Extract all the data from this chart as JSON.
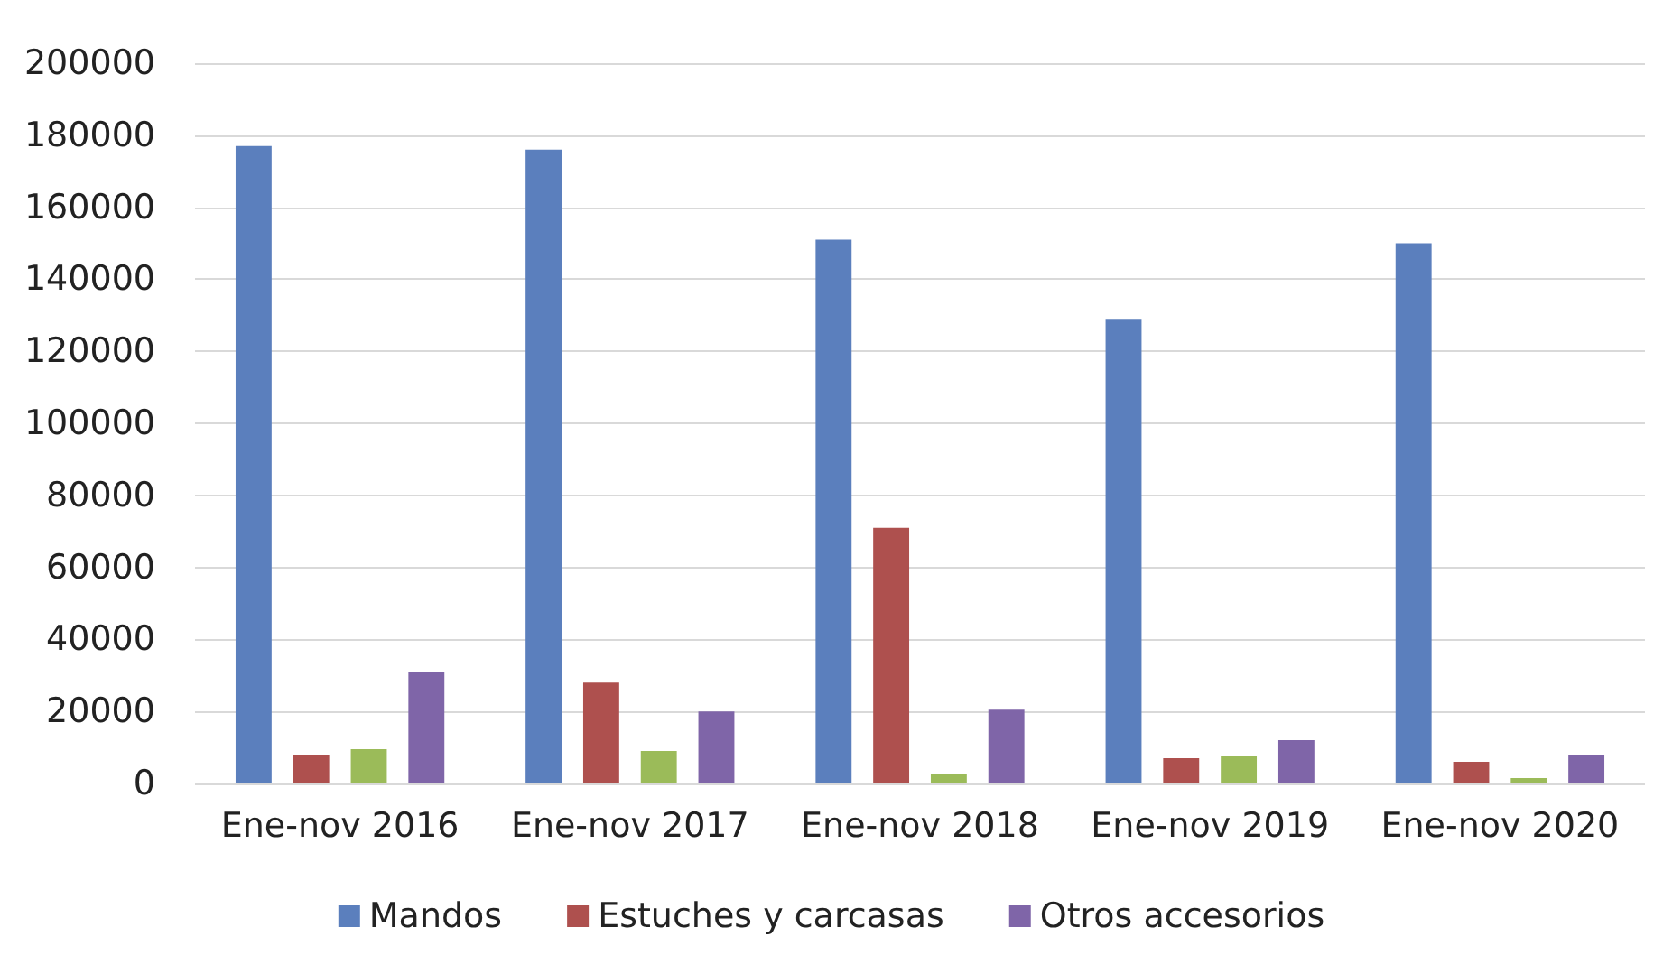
{
  "chart_data": {
    "type": "bar",
    "categories": [
      "Ene-nov 2016",
      "Ene-nov 2017",
      "Ene-nov 2018",
      "Ene-nov 2019",
      "Ene-nov 2020"
    ],
    "series": [
      {
        "name": "Mandos",
        "color": "#5b7fbd",
        "values": [
          177000,
          176000,
          151000,
          129000,
          150000
        ]
      },
      {
        "name": "Estuches y carcasas",
        "color": "#ae504e",
        "values": [
          8000,
          28000,
          71000,
          7000,
          6000
        ]
      },
      {
        "color": "#9bbb59",
        "values": [
          9500,
          9000,
          2500,
          7500,
          1500
        ]
      },
      {
        "name": "Otros accesorios",
        "color": "#7f65a8",
        "values": [
          31000,
          20000,
          20500,
          12000,
          8000
        ]
      }
    ],
    "ylim": [
      0,
      200000
    ],
    "yticks": [
      0,
      20000,
      40000,
      60000,
      80000,
      100000,
      120000,
      140000,
      160000,
      180000,
      200000
    ],
    "grid": "y",
    "legend": "bottom"
  }
}
